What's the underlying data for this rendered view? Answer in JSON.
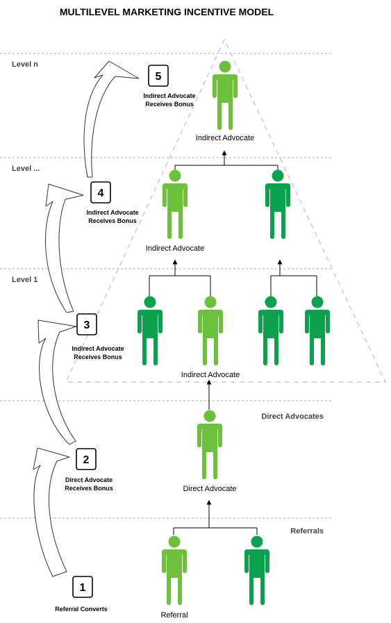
{
  "title": "MULTILEVEL MARKETING INCENTIVE MODEL",
  "levels": {
    "level_n": "Level n",
    "level_mid": "Level ...",
    "level_1": "Level 1",
    "direct": "Direct Advocates",
    "referrals": "Referrals"
  },
  "labels": {
    "top": "Indirect Advocate",
    "mid": "Indirect Advocate",
    "l1": "Indirect Advocate",
    "direct": "Direct Advocate",
    "referral": "Referral"
  },
  "steps": [
    {
      "num": "1",
      "line1": "Referral Converts",
      "line2": ""
    },
    {
      "num": "2",
      "line1": "Direct Advocate",
      "line2": "Receives Bonus"
    },
    {
      "num": "3",
      "line1": "Indirect Advocate",
      "line2": "Receives Bonus"
    },
    {
      "num": "4",
      "line1": "Indirect Advocate",
      "line2": "Receives Bonus"
    },
    {
      "num": "5",
      "line1": "Indirect Advocate",
      "line2": "Receives Bonus"
    }
  ],
  "colors": {
    "light_green": "#6cc13a",
    "dark_green": "#0aa24c"
  }
}
